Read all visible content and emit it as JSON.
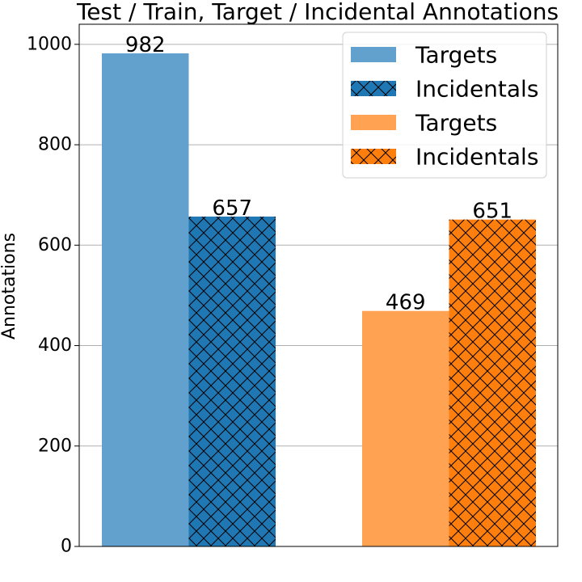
{
  "chart_data": {
    "type": "bar",
    "title": "Test / Train, Target / Incidental Annotations",
    "xlabel": "",
    "ylabel": "Annotations",
    "ylim": [
      0,
      1040
    ],
    "yticks": [
      0,
      200,
      400,
      600,
      800,
      1000
    ],
    "grid": true,
    "legend_position": "top-right",
    "categories": [
      "",
      ""
    ],
    "series": [
      {
        "name": "Targets",
        "values": [
          982,
          0
        ],
        "color": "#62a0ce",
        "hatch": "none"
      },
      {
        "name": "Incidentals",
        "values": [
          657,
          0
        ],
        "color": "#1f77b4",
        "hatch": "x"
      },
      {
        "name": "Targets",
        "values": [
          0,
          469
        ],
        "color": "#ffa352",
        "hatch": "none"
      },
      {
        "name": "Incidentals",
        "values": [
          0,
          651
        ],
        "color": "#ff7f0e",
        "hatch": "x"
      }
    ],
    "bars": [
      {
        "series": 0,
        "category": 0,
        "value": 982,
        "label": "982"
      },
      {
        "series": 1,
        "category": 0,
        "value": 657,
        "label": "657"
      },
      {
        "series": 2,
        "category": 1,
        "value": 469,
        "label": "469"
      },
      {
        "series": 3,
        "category": 1,
        "value": 651,
        "label": "651"
      }
    ]
  }
}
